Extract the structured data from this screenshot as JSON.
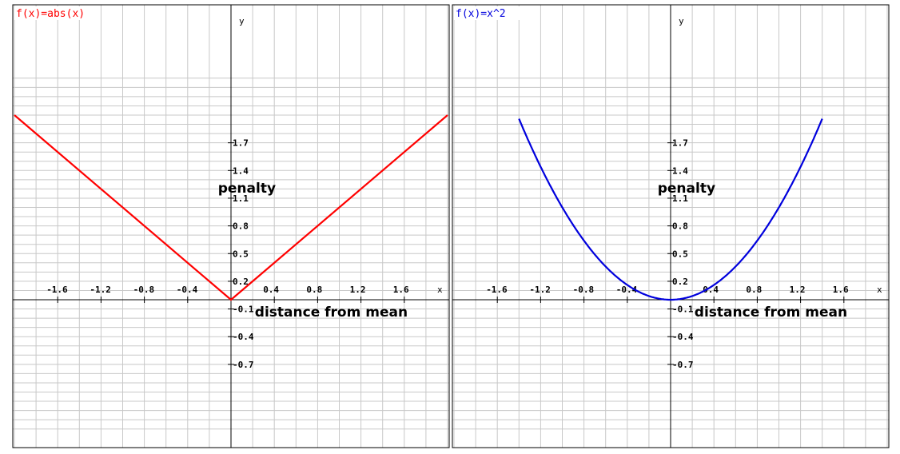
{
  "chart_data": [
    {
      "type": "line",
      "title": "",
      "function_label": "f(x)=abs(x)",
      "xlabel": "x",
      "ylabel": "y",
      "xlim": [
        -2.0,
        2.0
      ],
      "ylim": [
        -1.0,
        1.95
      ],
      "grid": true,
      "grid_step": [
        0.2,
        0.1
      ],
      "x_ticks": [
        {
          "v": -1.6,
          "label": "-1.6"
        },
        {
          "v": -1.2,
          "label": "-1.2"
        },
        {
          "v": -0.8,
          "label": "-0.8"
        },
        {
          "v": -0.4,
          "label": "-0.4"
        },
        {
          "v": 0.4,
          "label": "0.4"
        },
        {
          "v": 0.8,
          "label": "0.8"
        },
        {
          "v": 1.2,
          "label": "1.2"
        },
        {
          "v": 1.6,
          "label": "1.6"
        }
      ],
      "y_ticks": [
        {
          "v": 1.7,
          "label": "1.7"
        },
        {
          "v": 1.4,
          "label": "1.4"
        },
        {
          "v": 1.1,
          "label": "1.1"
        },
        {
          "v": 0.8,
          "label": "0.8"
        },
        {
          "v": 0.5,
          "label": "0.5"
        },
        {
          "v": 0.2,
          "label": "0.2"
        },
        {
          "v": -0.1,
          "label": "-0.1"
        },
        {
          "v": -0.4,
          "label": "-0.4"
        },
        {
          "v": -0.7,
          "label": "-0.7"
        }
      ],
      "series": [
        {
          "name": "f(x)=abs(x)",
          "color": "#ff0000",
          "x": [
            -2.0,
            0.0,
            2.0
          ],
          "y": [
            2.0,
            0.0,
            2.0
          ]
        }
      ],
      "annotations": [
        {
          "text": "penalty",
          "x": -0.12,
          "y": 1.16
        },
        {
          "text": "distance from mean",
          "x": 0.22,
          "y": -0.18
        }
      ]
    },
    {
      "type": "line",
      "title": "",
      "function_label": "f(x)=x^2",
      "xlabel": "x",
      "ylabel": "y",
      "xlim": [
        -2.0,
        2.0
      ],
      "ylim": [
        -1.0,
        1.95
      ],
      "grid": true,
      "grid_step": [
        0.2,
        0.1
      ],
      "x_ticks": [
        {
          "v": -1.6,
          "label": "-1.6"
        },
        {
          "v": -1.2,
          "label": "-1.2"
        },
        {
          "v": -0.8,
          "label": "-0.8"
        },
        {
          "v": -0.4,
          "label": "-0.4"
        },
        {
          "v": 0.4,
          "label": "0.4"
        },
        {
          "v": 0.8,
          "label": "0.8"
        },
        {
          "v": 1.2,
          "label": "1.2"
        },
        {
          "v": 1.6,
          "label": "1.6"
        }
      ],
      "y_ticks": [
        {
          "v": 1.7,
          "label": "1.7"
        },
        {
          "v": 1.4,
          "label": "1.4"
        },
        {
          "v": 1.1,
          "label": "1.1"
        },
        {
          "v": 0.8,
          "label": "0.8"
        },
        {
          "v": 0.5,
          "label": "0.5"
        },
        {
          "v": 0.2,
          "label": "0.2"
        },
        {
          "v": -0.1,
          "label": "-0.1"
        },
        {
          "v": -0.4,
          "label": "-0.4"
        },
        {
          "v": -0.7,
          "label": "-0.7"
        }
      ],
      "series": [
        {
          "name": "f(x)=x^2",
          "color": "#0000dd",
          "x": [
            -1.4,
            -1.2,
            -1.0,
            -0.8,
            -0.6,
            -0.4,
            -0.2,
            0.0,
            0.2,
            0.4,
            0.6,
            0.8,
            1.0,
            1.2,
            1.4
          ],
          "y": [
            1.96,
            1.44,
            1.0,
            0.64,
            0.36,
            0.16,
            0.04,
            0.0,
            0.04,
            0.16,
            0.36,
            0.64,
            1.0,
            1.44,
            1.96
          ]
        }
      ],
      "annotations": [
        {
          "text": "penalty",
          "x": -0.12,
          "y": 1.16
        },
        {
          "text": "distance from mean",
          "x": 0.22,
          "y": -0.18
        }
      ]
    }
  ]
}
